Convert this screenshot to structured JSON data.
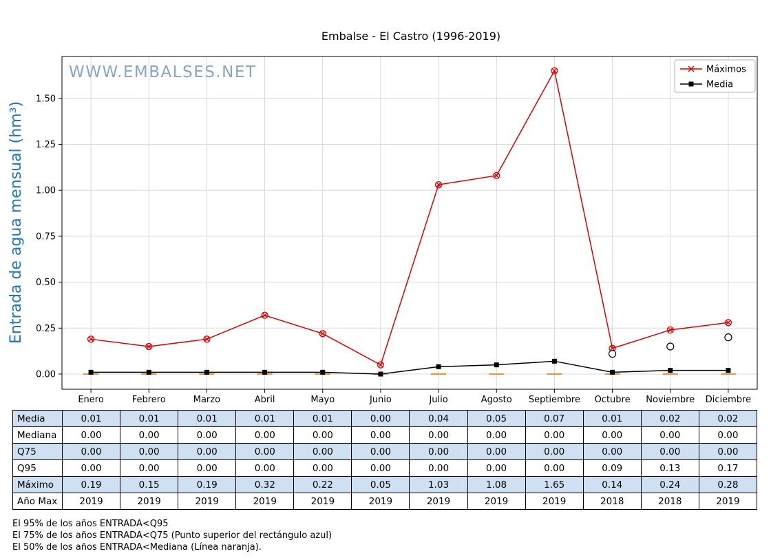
{
  "watermark": "WWW.EMBALSES.NET",
  "chart_data": {
    "type": "line",
    "title": "Embalse - El Castro (1996-2019)",
    "ylabel": "Entrada de agua mensual (hm³)",
    "categories": [
      "Enero",
      "Febrero",
      "Marzo",
      "Abril",
      "Mayo",
      "Junio",
      "Julio",
      "Agosto",
      "Septiembre",
      "Octubre",
      "Noviembre",
      "Diciembre"
    ],
    "yticks": [
      0.0,
      0.25,
      0.5,
      0.75,
      1.0,
      1.25,
      1.5
    ],
    "ytick_labels": [
      "0.00",
      "0.25",
      "0.50",
      "0.75",
      "1.00",
      "1.25",
      "1.50"
    ],
    "ylim": [
      -0.08,
      1.73
    ],
    "grid": true,
    "legend_position": "upper right",
    "series": [
      {
        "name": "Máximos",
        "color": "#dd0000",
        "marker": "circle-x",
        "values": [
          0.19,
          0.15,
          0.19,
          0.32,
          0.22,
          0.05,
          1.03,
          1.08,
          1.65,
          0.14,
          0.24,
          0.28
        ]
      },
      {
        "name": "Media",
        "color": "#000000",
        "marker": "square",
        "values": [
          0.01,
          0.01,
          0.01,
          0.01,
          0.01,
          0.0,
          0.04,
          0.05,
          0.07,
          0.01,
          0.02,
          0.02
        ]
      }
    ],
    "open_circles": {
      "name": "q95-outliers",
      "values": [
        null,
        null,
        null,
        null,
        null,
        null,
        null,
        null,
        null,
        0.11,
        0.15,
        0.2
      ]
    },
    "mediana_line": {
      "name": "mediana",
      "color": "#e8973a",
      "values": [
        0,
        0,
        0,
        0,
        0,
        0,
        0,
        0,
        0,
        0,
        0,
        0
      ]
    }
  },
  "table": {
    "rows": [
      {
        "label": "Media",
        "shaded": true,
        "values": [
          "0.01",
          "0.01",
          "0.01",
          "0.01",
          "0.01",
          "0.00",
          "0.04",
          "0.05",
          "0.07",
          "0.01",
          "0.02",
          "0.02"
        ]
      },
      {
        "label": "Mediana",
        "shaded": false,
        "values": [
          "0.00",
          "0.00",
          "0.00",
          "0.00",
          "0.00",
          "0.00",
          "0.00",
          "0.00",
          "0.00",
          "0.00",
          "0.00",
          "0.00"
        ]
      },
      {
        "label": "Q75",
        "shaded": true,
        "values": [
          "0.00",
          "0.00",
          "0.00",
          "0.00",
          "0.00",
          "0.00",
          "0.00",
          "0.00",
          "0.00",
          "0.00",
          "0.00",
          "0.00"
        ]
      },
      {
        "label": "Q95",
        "shaded": false,
        "values": [
          "0.00",
          "0.00",
          "0.00",
          "0.00",
          "0.00",
          "0.00",
          "0.00",
          "0.00",
          "0.00",
          "0.09",
          "0.13",
          "0.17"
        ]
      },
      {
        "label": "Máximo",
        "shaded": true,
        "values": [
          "0.19",
          "0.15",
          "0.19",
          "0.32",
          "0.22",
          "0.05",
          "1.03",
          "1.08",
          "1.65",
          "0.14",
          "0.24",
          "0.28"
        ]
      },
      {
        "label": "Año Max",
        "shaded": false,
        "values": [
          "2019",
          "2019",
          "2019",
          "2019",
          "2019",
          "2019",
          "2019",
          "2019",
          "2019",
          "2018",
          "2018",
          "2019"
        ]
      }
    ]
  },
  "footnotes": [
    "El 95% de los años ENTRADA<Q95",
    "El 75% de los años ENTRADA<Q75 (Punto superior del rectángulo azul)",
    "El 50% de los años ENTRADA<Mediana (Línea naranja)."
  ]
}
